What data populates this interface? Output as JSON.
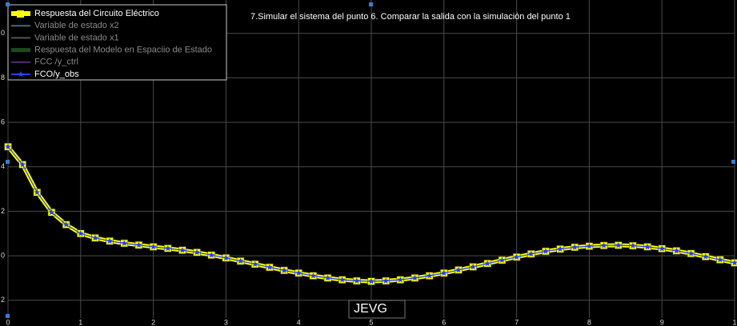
{
  "chart_data": {
    "type": "line",
    "title": "7.Simular el sistema del punto 6. Comparar la salida con la simulación del punto 1",
    "annotation": "JEVG",
    "x": [
      0,
      0.2,
      0.4,
      0.6,
      0.8,
      1.0,
      1.2,
      1.4,
      1.6,
      1.8,
      2.0,
      2.2,
      2.4,
      2.6,
      2.8,
      3.0,
      3.2,
      3.4,
      3.6,
      3.8,
      4.0,
      4.2,
      4.4,
      4.6,
      4.8,
      5.0,
      5.2,
      5.4,
      5.6,
      5.8,
      6.0,
      6.2,
      6.4,
      6.6,
      6.8,
      7.0,
      7.2,
      7.4,
      7.6,
      7.8,
      8.0,
      8.2,
      8.4,
      8.6,
      8.8,
      9.0,
      9.2,
      9.4,
      9.6,
      9.8,
      10
    ],
    "series": [
      {
        "name": "Respuesta del Circuito Eléctrico",
        "color": "#ffff00",
        "visible": true,
        "marker": "square",
        "values": [
          4.9,
          4.1,
          2.85,
          1.95,
          1.4,
          1.0,
          0.8,
          0.66,
          0.56,
          0.48,
          0.4,
          0.33,
          0.25,
          0.15,
          0.03,
          -0.1,
          -0.24,
          -0.38,
          -0.52,
          -0.66,
          -0.78,
          -0.9,
          -1.0,
          -1.08,
          -1.13,
          -1.15,
          -1.13,
          -1.08,
          -1.0,
          -0.9,
          -0.78,
          -0.64,
          -0.5,
          -0.35,
          -0.2,
          -0.06,
          0.08,
          0.2,
          0.3,
          0.38,
          0.43,
          0.46,
          0.47,
          0.45,
          0.4,
          0.32,
          0.22,
          0.1,
          -0.04,
          -0.18,
          -0.32
        ]
      },
      {
        "name": "Variable de estado x2",
        "color": "#4a6a6a",
        "visible": false
      },
      {
        "name": "Variable de estado x1",
        "color": "#555555",
        "visible": false
      },
      {
        "name": "Respuesta del Modelo en Espaciio de Estado",
        "color": "#1e4a1e",
        "visible": false
      },
      {
        "name": "FCC /y_ctrl",
        "color": "#5a2a7a",
        "visible": false
      },
      {
        "name": "FCO/y_obs",
        "color": "#2040ff",
        "visible": true,
        "marker": "star",
        "values": [
          4.9,
          4.1,
          2.85,
          1.95,
          1.4,
          1.0,
          0.8,
          0.66,
          0.56,
          0.48,
          0.4,
          0.33,
          0.25,
          0.15,
          0.03,
          -0.1,
          -0.24,
          -0.38,
          -0.52,
          -0.66,
          -0.78,
          -0.9,
          -1.0,
          -1.08,
          -1.13,
          -1.15,
          -1.13,
          -1.08,
          -1.0,
          -0.9,
          -0.78,
          -0.64,
          -0.5,
          -0.35,
          -0.2,
          -0.06,
          0.08,
          0.2,
          0.3,
          0.38,
          0.43,
          0.46,
          0.47,
          0.45,
          0.4,
          0.32,
          0.22,
          0.1,
          -0.04,
          -0.18,
          -0.32
        ]
      }
    ],
    "xlim": [
      0,
      10
    ],
    "xticks": [
      0,
      1,
      2,
      3,
      4,
      5,
      6,
      7,
      8,
      9,
      {
        "value": 10,
        "label": "1"
      }
    ],
    "ylim": [
      -2.8,
      11.5
    ],
    "yticks": [
      {
        "value": 10,
        "label": "0"
      },
      8,
      6,
      4,
      2,
      0,
      {
        "value": -2,
        "label": "2"
      }
    ],
    "grid": true,
    "legend": "upper left"
  }
}
